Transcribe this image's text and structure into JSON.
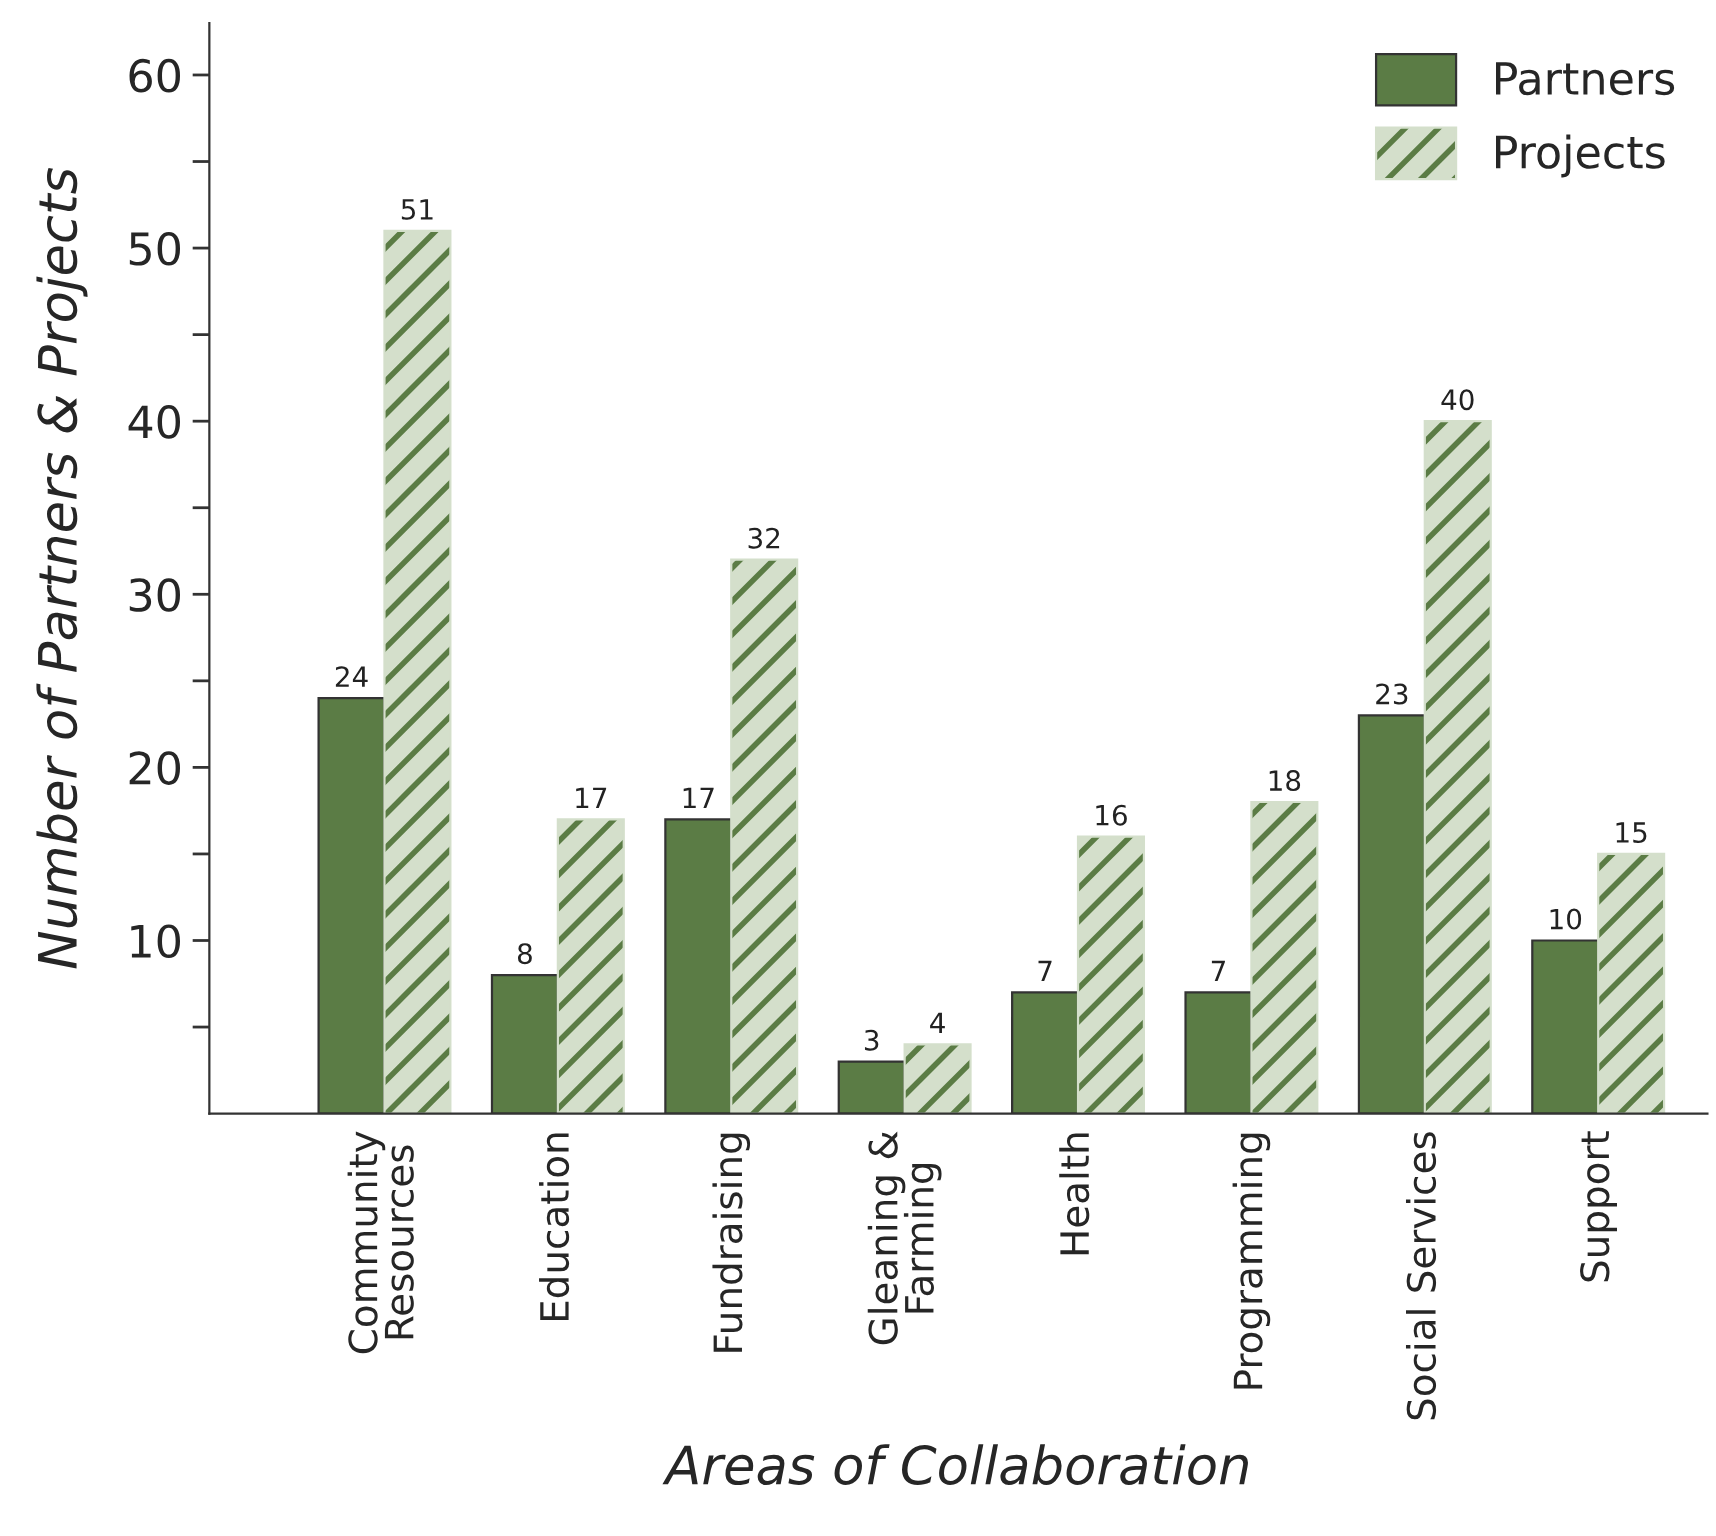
{
  "chart_data": {
    "type": "bar",
    "xlabel": "Areas of Collaboration",
    "ylabel": "Number of Partners & Projects",
    "categories": [
      "Community\nResources",
      "Education",
      "Fundraising",
      "Gleaning &\nFarming",
      "Health",
      "Programming",
      "Social Services",
      "Support"
    ],
    "series": [
      {
        "name": "Partners",
        "color": "#5b7c45",
        "values": [
          24,
          8,
          17,
          3,
          7,
          7,
          23,
          10
        ]
      },
      {
        "name": "Projects",
        "color": "#d4dfcb",
        "values": [
          51,
          17,
          32,
          4,
          16,
          18,
          40,
          15
        ]
      }
    ],
    "ylim": [
      0,
      63
    ],
    "yticks": [
      {
        "value": 5,
        "label": null
      },
      10,
      {
        "value": 15,
        "label": null
      },
      20,
      {
        "value": 25,
        "label": null
      },
      30,
      {
        "value": 35,
        "label": null
      },
      40,
      {
        "value": 45,
        "label": null
      },
      50,
      {
        "value": 55,
        "label": null
      },
      60
    ],
    "data_labels": true,
    "legend": "top right",
    "grid": false
  }
}
